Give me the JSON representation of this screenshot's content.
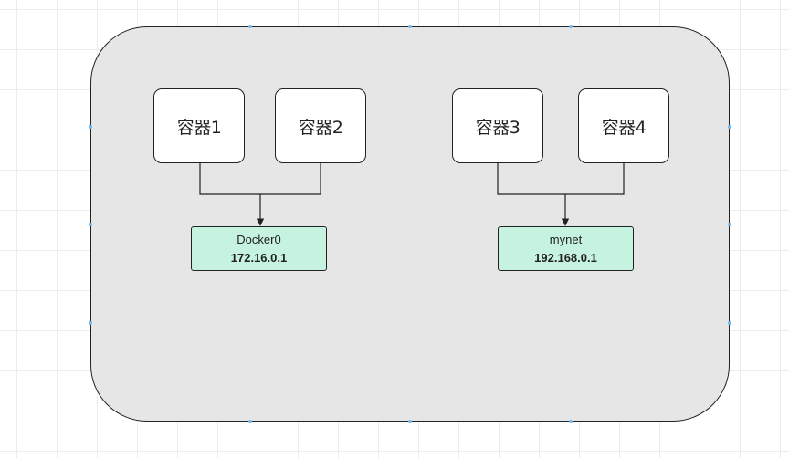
{
  "diagram": {
    "containers": [
      {
        "label": "容器1"
      },
      {
        "label": "容器2"
      },
      {
        "label": "容器3"
      },
      {
        "label": "容器4"
      }
    ],
    "bridges": [
      {
        "name": "Docker0",
        "ip": "172.16.0.1"
      },
      {
        "name": "mynet",
        "ip": "192.168.0.1"
      }
    ],
    "connections": [
      {
        "from": [
          "容器1",
          "容器2"
        ],
        "to": "Docker0"
      },
      {
        "from": [
          "容器3",
          "容器4"
        ],
        "to": "mynet"
      }
    ]
  },
  "colors": {
    "host_fill": "#e6e6e6",
    "container_fill": "#ffffff",
    "bridge_fill": "#c6f3e0",
    "stroke": "#222222",
    "grid": "#ececec",
    "selection_handle": "#6cb8f0"
  }
}
